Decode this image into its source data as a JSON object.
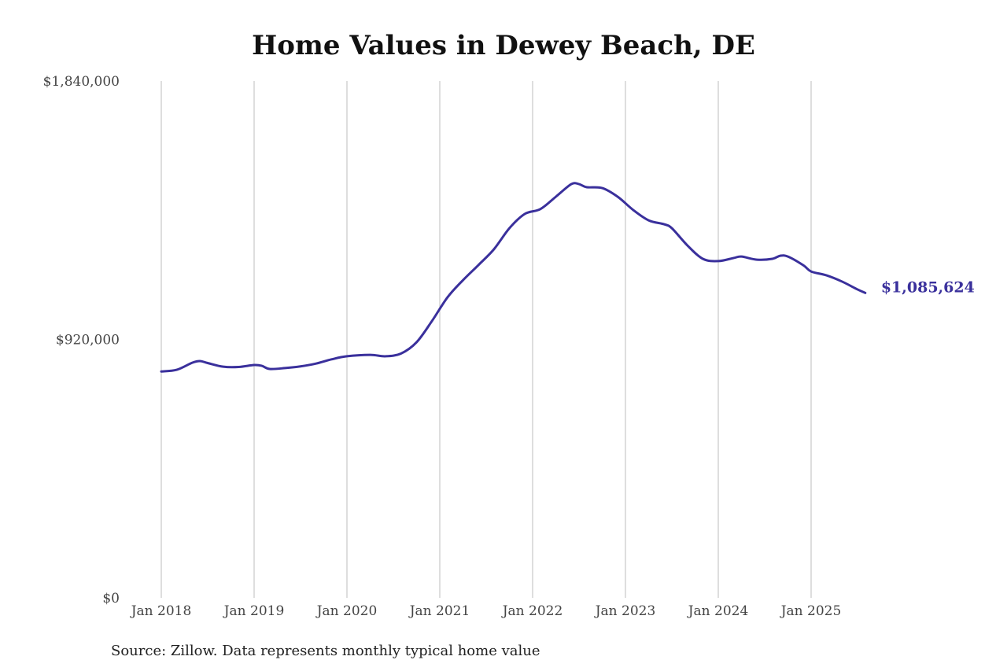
{
  "chart_data": {
    "type": "line",
    "title": "Home Values in Dewey Beach, DE",
    "source": "Source: Zillow. Data represents monthly typical home value",
    "xlabel": "",
    "ylabel": "",
    "ylim": [
      0,
      1840000
    ],
    "y_ticks": [
      {
        "value": 0,
        "label": "$0"
      },
      {
        "value": 920000,
        "label": "$920,000"
      },
      {
        "value": 1840000,
        "label": "$1,840,000"
      }
    ],
    "x_ticks": [
      {
        "value": "2018-01",
        "label": "Jan 2018"
      },
      {
        "value": "2019-01",
        "label": "Jan 2019"
      },
      {
        "value": "2020-01",
        "label": "Jan 2020"
      },
      {
        "value": "2021-01",
        "label": "Jan 2021"
      },
      {
        "value": "2022-01",
        "label": "Jan 2022"
      },
      {
        "value": "2023-01",
        "label": "Jan 2023"
      },
      {
        "value": "2024-01",
        "label": "Jan 2024"
      },
      {
        "value": "2025-01",
        "label": "Jan 2025"
      }
    ],
    "grid": "vertical",
    "series": [
      {
        "name": "Typical home value",
        "color": "#3a309c",
        "end_label": "$1,085,624",
        "points": [
          [
            "2018-01",
            806000
          ],
          [
            "2018-03",
            812000
          ],
          [
            "2018-05",
            837000
          ],
          [
            "2018-06",
            843000
          ],
          [
            "2018-07",
            836000
          ],
          [
            "2018-09",
            823000
          ],
          [
            "2018-11",
            822000
          ],
          [
            "2019-01",
            829000
          ],
          [
            "2019-02",
            826000
          ],
          [
            "2019-03",
            815000
          ],
          [
            "2019-05",
            818000
          ],
          [
            "2019-07",
            824000
          ],
          [
            "2019-09",
            834000
          ],
          [
            "2019-11",
            849000
          ],
          [
            "2020-01",
            860000
          ],
          [
            "2020-04",
            865000
          ],
          [
            "2020-06",
            860000
          ],
          [
            "2020-08",
            870000
          ],
          [
            "2020-10",
            910000
          ],
          [
            "2020-12",
            986000
          ],
          [
            "2021-02",
            1070000
          ],
          [
            "2021-04",
            1131000
          ],
          [
            "2021-06",
            1185000
          ],
          [
            "2021-08",
            1241000
          ],
          [
            "2021-10",
            1316000
          ],
          [
            "2021-12",
            1367000
          ],
          [
            "2022-02",
            1384000
          ],
          [
            "2022-04",
            1428000
          ],
          [
            "2022-06",
            1473000
          ],
          [
            "2022-07",
            1473000
          ],
          [
            "2022-08",
            1462000
          ],
          [
            "2022-10",
            1459000
          ],
          [
            "2022-12",
            1428000
          ],
          [
            "2023-02",
            1381000
          ],
          [
            "2023-04",
            1344000
          ],
          [
            "2023-06",
            1330000
          ],
          [
            "2023-07",
            1316000
          ],
          [
            "2023-09",
            1255000
          ],
          [
            "2023-11",
            1207000
          ],
          [
            "2024-01",
            1199000
          ],
          [
            "2024-03",
            1210000
          ],
          [
            "2024-04",
            1215000
          ],
          [
            "2024-06",
            1204000
          ],
          [
            "2024-08",
            1207000
          ],
          [
            "2024-09",
            1218000
          ],
          [
            "2024-10",
            1215000
          ],
          [
            "2024-12",
            1184000
          ],
          [
            "2025-01",
            1162000
          ],
          [
            "2025-03",
            1148000
          ],
          [
            "2025-05",
            1126000
          ],
          [
            "2025-07",
            1098000
          ],
          [
            "2025-08",
            1085624
          ]
        ]
      }
    ]
  }
}
